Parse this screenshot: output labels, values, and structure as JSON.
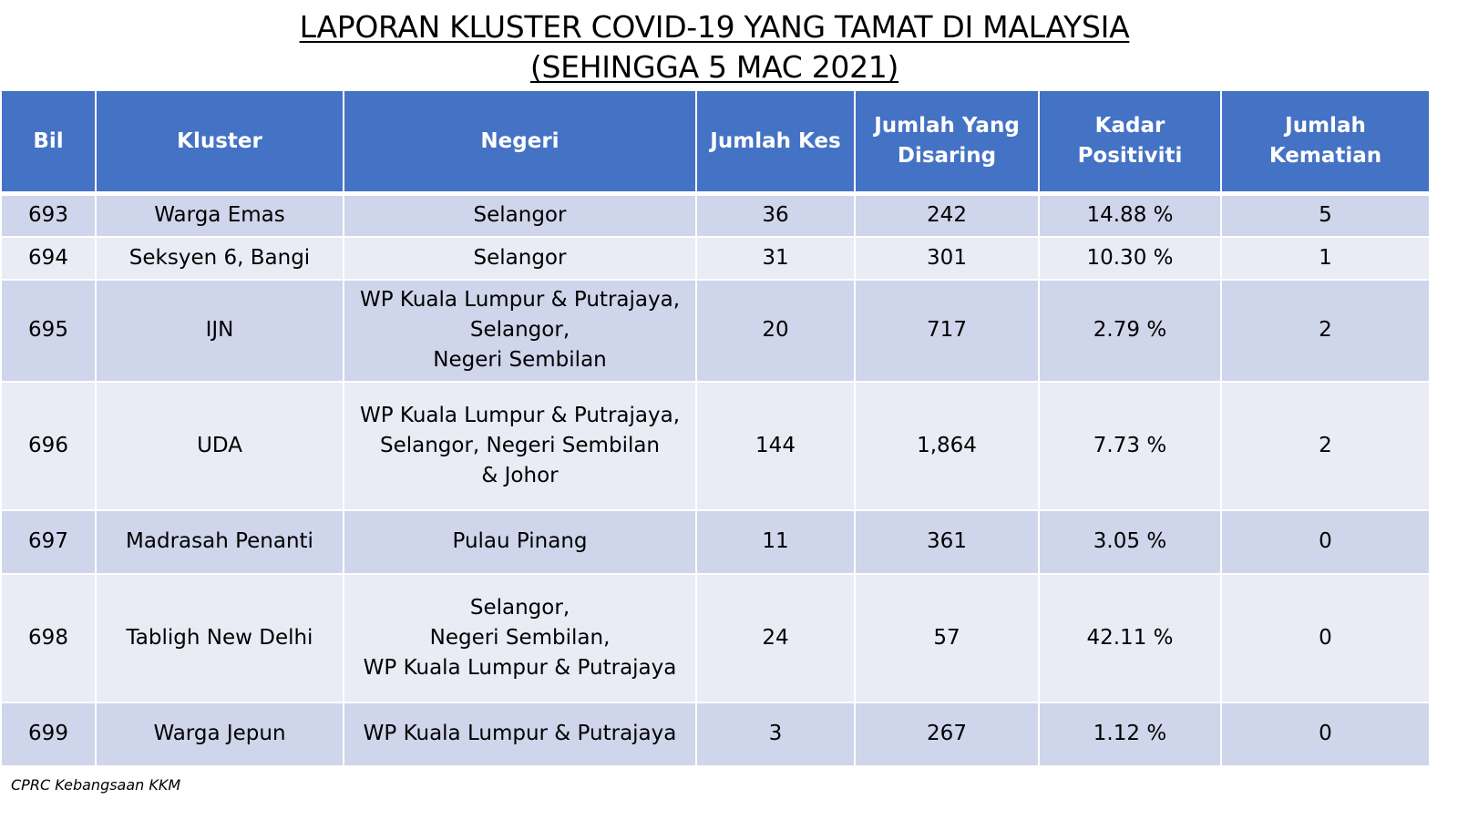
{
  "title": {
    "line1": "LAPORAN KLUSTER COVID-19 YANG TAMAT DI MALAYSIA",
    "line2": "(SEHINGGA 5 MAC 2021)"
  },
  "table": {
    "headers": {
      "bil": "Bil",
      "kluster": "Kluster",
      "negeri": "Negeri",
      "jumlah_kes": "Jumlah Kes",
      "jumlah_disaring_1": "Jumlah Yang",
      "jumlah_disaring_2": "Disaring",
      "kadar_positiviti": "Kadar Positiviti",
      "jumlah_kematian": "Jumlah Kematian"
    },
    "rows": [
      {
        "bil": "693",
        "kluster": "Warga Emas",
        "negeri": [
          "Selangor"
        ],
        "kes": "36",
        "disaring": "242",
        "positiviti": "14.88 %",
        "kematian": "5"
      },
      {
        "bil": "694",
        "kluster": "Seksyen 6, Bangi",
        "negeri": [
          "Selangor"
        ],
        "kes": "31",
        "disaring": "301",
        "positiviti": "10.30 %",
        "kematian": "1"
      },
      {
        "bil": "695",
        "kluster": "IJN",
        "negeri": [
          "WP Kuala Lumpur & Putrajaya,",
          "Selangor,",
          "Negeri Sembilan"
        ],
        "kes": "20",
        "disaring": "717",
        "positiviti": "2.79 %",
        "kematian": "2"
      },
      {
        "bil": "696",
        "kluster": "UDA",
        "negeri": [
          "WP Kuala Lumpur & Putrajaya,",
          "Selangor, Negeri Sembilan",
          "& Johor"
        ],
        "kes": "144",
        "disaring": "1,864",
        "positiviti": "7.73 %",
        "kematian": "2"
      },
      {
        "bil": "697",
        "kluster": "Madrasah Penanti",
        "negeri": [
          "Pulau Pinang"
        ],
        "kes": "11",
        "disaring": "361",
        "positiviti": "3.05 %",
        "kematian": "0"
      },
      {
        "bil": "698",
        "kluster": "Tabligh New Delhi",
        "negeri": [
          "Selangor,",
          "Negeri Sembilan,",
          "WP Kuala Lumpur & Putrajaya"
        ],
        "kes": "24",
        "disaring": "57",
        "positiviti": "42.11 %",
        "kematian": "0"
      },
      {
        "bil": "699",
        "kluster": "Warga Jepun",
        "negeri": [
          "WP Kuala Lumpur & Putrajaya"
        ],
        "kes": "3",
        "disaring": "267",
        "positiviti": "1.12 %",
        "kematian": "0"
      }
    ]
  },
  "footer": "CPRC Kebangsaan KKM",
  "colors": {
    "header_bg": "#4472c4",
    "row_odd": "#cfd5ea",
    "row_even": "#e9ebf5"
  }
}
